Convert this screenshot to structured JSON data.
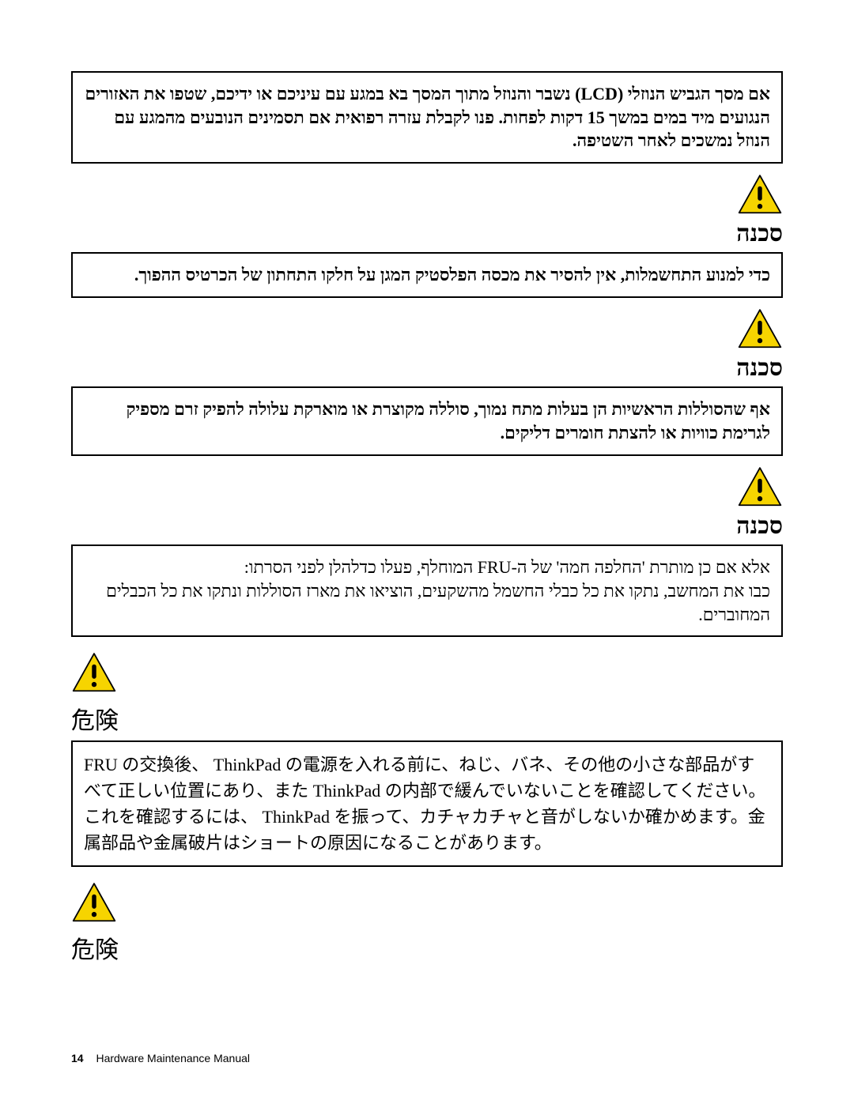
{
  "icon": {
    "fill": "#f6d400",
    "stroke": "#000000",
    "stroke_width": 2,
    "size": 58
  },
  "box1": {
    "text": "אם מסך הגביש הנוזלי (LCD) נשבר והנוזל מתוך המסך בא במגע עם עיניכם או ידיכם, שטפו את האזורים הנגועים מיד במים במשך 15 דקות לפחות. פנו לקבלת עזרה רפואית אם תסמינים הנובעים מהמגע עם הנוזל נמשכים לאחר השטיפה."
  },
  "heading_rtl": "סכנה",
  "box2": {
    "text": "כדי למנוע התחשמלות, אין להסיר את מכסה הפלסטיק המגן על חלקו התחתון של הכרטיס ההפוך."
  },
  "box3": {
    "text": "אף שהסוללות הראשיות הן בעלות מתח נמוך, סוללה מקוצרת או מוארקת עלולה להפיק זרם מספיק לגרימת כוויות או להצתת חומרים דליקים."
  },
  "box4": {
    "line1": "אלא אם כן מותרת 'החלפה חמה' של ה-FRU המוחלף, פעלו כדלהלן לפני הסרתו:",
    "line2": "כבו את המחשב, נתקו את כל כבלי החשמל מהשקעים, הוציאו את מארז הסוללות ונתקו את כל הכבלים המחוברים."
  },
  "heading_cjk": "危険",
  "jp_box1": {
    "text": "FRU の交換後、 ThinkPad の電源を入れる前に、ねじ、バネ、その他の小さな部品がすべて正しい位置にあり、また ThinkPad の内部で緩んでいないことを確認してください。\nこれを確認するには、 ThinkPad を振って、カチャカチャと音がしないか確かめます。金属部品や金属破片はショートの原因になることがあります。"
  },
  "footer": {
    "page": "14",
    "title": "Hardware Maintenance Manual"
  }
}
